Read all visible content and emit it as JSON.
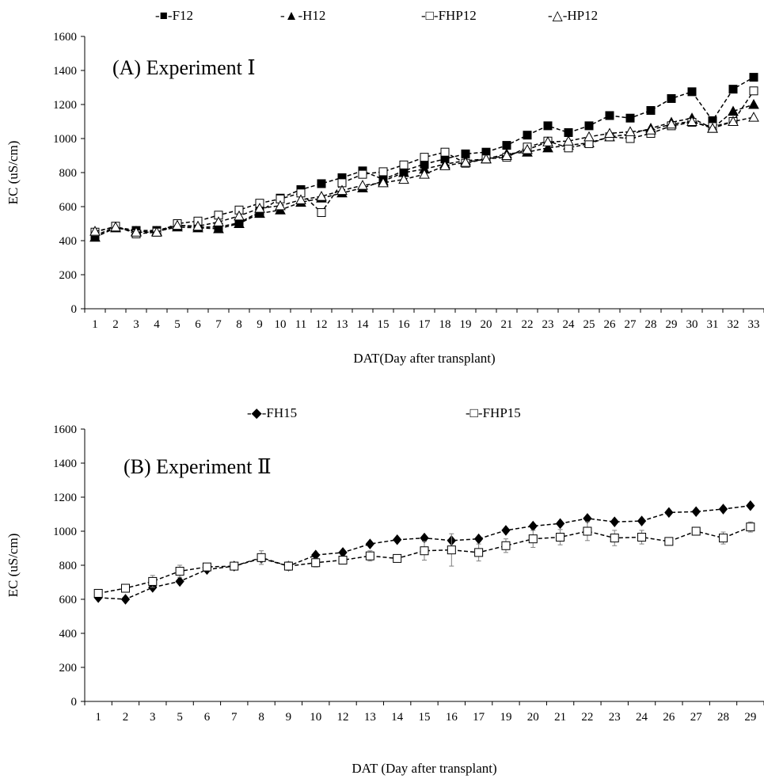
{
  "chart_data": [
    {
      "type": "line",
      "panel_label": "(A) Experiment Ⅰ",
      "xlabel": "DAT(Day  after transplant)",
      "ylabel": "EC (uS/cm)",
      "ylim": [
        0,
        1600
      ],
      "yticks": [
        0,
        200,
        400,
        600,
        800,
        1000,
        1200,
        1400,
        1600
      ],
      "categories": [
        "1",
        "2",
        "3",
        "4",
        "5",
        "6",
        "7",
        "8",
        "9",
        "10",
        "11",
        "12",
        "13",
        "14",
        "15",
        "16",
        "17",
        "18",
        "19",
        "20",
        "21",
        "22",
        "23",
        "24",
        "25",
        "26",
        "27",
        "28",
        "29",
        "30",
        "31",
        "32",
        "33"
      ],
      "legend_position": "top",
      "series": [
        {
          "name": "-■-F12",
          "marker": "square-filled",
          "values": [
            430,
            480,
            460,
            460,
            490,
            480,
            480,
            505,
            570,
            650,
            700,
            735,
            770,
            810,
            760,
            810,
            850,
            880,
            910,
            920,
            960,
            1020,
            1075,
            1035,
            1075,
            1135,
            1120,
            1165,
            1235,
            1275,
            1105,
            1290,
            1360
          ]
        },
        {
          "name": "-▲-H12",
          "marker": "triangle-filled",
          "values": [
            420,
            475,
            455,
            455,
            480,
            475,
            470,
            500,
            560,
            580,
            625,
            650,
            680,
            710,
            750,
            800,
            820,
            850,
            870,
            880,
            910,
            920,
            945,
            960,
            975,
            1010,
            1025,
            1060,
            1095,
            1120,
            1060,
            1160,
            1200
          ]
        },
        {
          "name": "-□-FHP12",
          "marker": "square-open",
          "values": [
            450,
            485,
            440,
            450,
            500,
            515,
            550,
            580,
            620,
            645,
            680,
            565,
            740,
            790,
            805,
            845,
            890,
            920,
            855,
            880,
            890,
            950,
            985,
            945,
            970,
            1010,
            1000,
            1030,
            1075,
            1095,
            1070,
            1100,
            1280
          ]
        },
        {
          "name": "-△-HP12",
          "marker": "triangle-open",
          "values": [
            455,
            480,
            450,
            450,
            490,
            485,
            510,
            545,
            590,
            605,
            640,
            660,
            695,
            725,
            740,
            760,
            790,
            840,
            860,
            880,
            900,
            935,
            980,
            985,
            1010,
            1030,
            1040,
            1050,
            1085,
            1100,
            1060,
            1100,
            1125
          ]
        }
      ]
    },
    {
      "type": "line",
      "panel_label": "(B) Experiment Ⅱ",
      "xlabel": "DAT (Day after transplant)",
      "ylabel": "EC (uS/cm)",
      "ylim": [
        0,
        1600
      ],
      "yticks": [
        0,
        200,
        400,
        600,
        800,
        1000,
        1200,
        1400,
        1600
      ],
      "categories": [
        "1",
        "2",
        "3",
        "5",
        "6",
        "7",
        "8",
        "9",
        "10",
        "12",
        "13",
        "14",
        "15",
        "16",
        "17",
        "19",
        "20",
        "21",
        "22",
        "23",
        "24",
        "26",
        "27",
        "28",
        "29"
      ],
      "legend_position": "top",
      "series": [
        {
          "name": "-◆-FH15",
          "marker": "diamond-filled",
          "values": [
            610,
            600,
            670,
            705,
            775,
            795,
            840,
            795,
            860,
            875,
            925,
            950,
            960,
            945,
            955,
            1005,
            1030,
            1045,
            1075,
            1055,
            1060,
            1110,
            1115,
            1130,
            1150
          ]
        },
        {
          "name": "-□-FHP15",
          "marker": "square-open",
          "values": [
            635,
            665,
            705,
            765,
            790,
            795,
            845,
            795,
            815,
            830,
            855,
            840,
            885,
            890,
            875,
            915,
            955,
            965,
            1000,
            960,
            965,
            940,
            1000,
            960,
            1025
          ],
          "errors": [
            10,
            20,
            35,
            35,
            10,
            10,
            40,
            25,
            25,
            20,
            30,
            15,
            55,
            95,
            50,
            40,
            50,
            45,
            55,
            45,
            40,
            15,
            15,
            35,
            30
          ]
        }
      ]
    }
  ]
}
